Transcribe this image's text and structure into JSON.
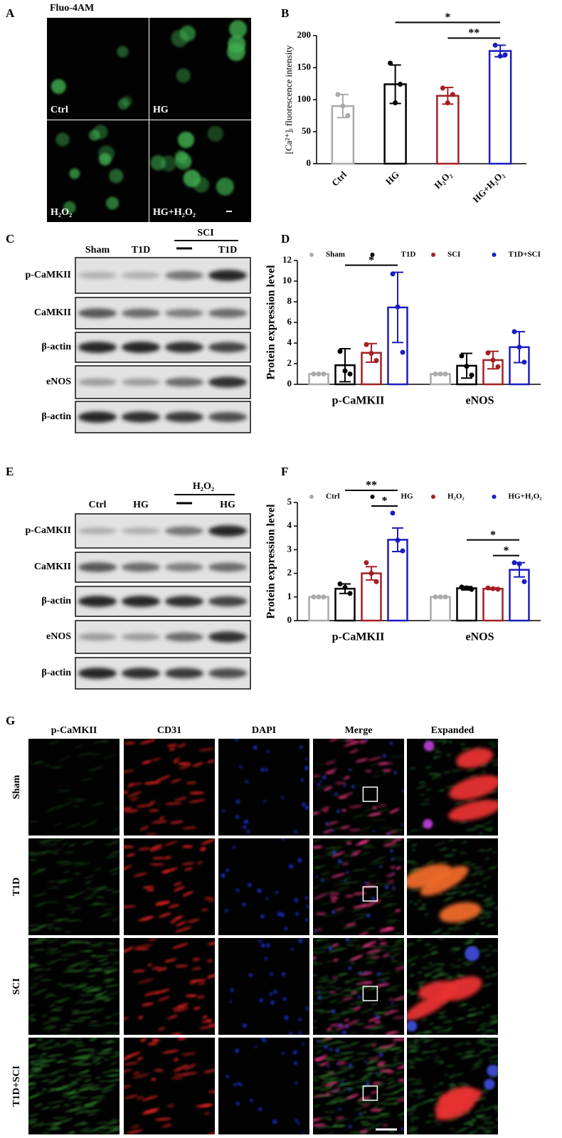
{
  "figure": {
    "panel_labels": {
      "a": "A",
      "b": "B",
      "c": "C",
      "d": "D",
      "e": "E",
      "f": "F",
      "g": "G"
    },
    "panel_a": {
      "stain": "Fluo-4AM",
      "labels": [
        "Ctrl",
        "HG",
        "H₂O₂",
        "HG+H₂O₂"
      ]
    },
    "panel_c": {
      "group": "SCI",
      "lanes": [
        "Sham",
        "T1D",
        "T1D"
      ],
      "proteins": [
        "p-CaMKII",
        "CaMKII",
        "β-actin",
        "eNOS",
        "β-actin"
      ]
    },
    "panel_e": {
      "group": "H₂O₂",
      "lanes": [
        "Ctrl",
        "HG",
        "HG"
      ],
      "proteins": [
        "p-CaMKII",
        "CaMKII",
        "β-actin",
        "eNOS",
        "β-actin"
      ]
    },
    "panel_g": {
      "columns": [
        "p-CaMKII",
        "CD31",
        "DAPI",
        "Merge",
        "Expanded"
      ],
      "rows": [
        "Sham",
        "T1D",
        "SCI",
        "T1D+SCI"
      ]
    }
  },
  "chart_data": [
    {
      "type": "bar",
      "y_label": "[Ca²⁺]ᵢ fluorescence intensity",
      "categories": [
        "Ctrl",
        "HG",
        "H₂O₂",
        "HG+H₂O₂"
      ],
      "values": [
        90,
        124,
        106,
        176
      ],
      "errors": [
        18,
        30,
        13,
        9
      ],
      "points": [
        [
          108,
          90,
          75
        ],
        [
          157,
          95,
          124
        ],
        [
          118,
          95,
          108
        ],
        [
          185,
          168,
          170
        ]
      ],
      "colors": [
        "#aaaaaa",
        "#000000",
        "#a31f24",
        "#1c1cc0"
      ],
      "ylim": [
        0,
        200
      ],
      "yticks": [
        0,
        50,
        100,
        150,
        200
      ],
      "annotations": [
        {
          "label": "*",
          "from": 1,
          "to": 3
        },
        {
          "label": "**",
          "from": 2,
          "to": 3
        }
      ]
    },
    {
      "type": "bar",
      "y_label": "Protein expression level",
      "categories": [
        "p-CaMKII",
        "eNOS"
      ],
      "legend": "top",
      "series": [
        {
          "name": "Sham",
          "color": "#aaaaaa",
          "values": [
            1,
            1
          ],
          "errors": [
            0,
            0
          ],
          "points": [
            [
              1,
              1,
              1
            ],
            [
              1,
              1,
              1
            ]
          ]
        },
        {
          "name": "T1D",
          "color": "#000000",
          "values": [
            1.85,
            1.8
          ],
          "errors": [
            1.6,
            1.2
          ],
          "points": [
            [
              3.2,
              1.3,
              1.0
            ],
            [
              2.75,
              1.75,
              0.9
            ]
          ]
        },
        {
          "name": "SCI",
          "color": "#a31f24",
          "values": [
            3.05,
            2.35
          ],
          "errors": [
            0.9,
            0.85
          ],
          "points": [
            [
              3.85,
              3.0,
              2.3
            ],
            [
              3.05,
              2.35,
              1.7
            ]
          ]
        },
        {
          "name": "T1D+SCI",
          "color": "#1c1cc0",
          "values": [
            7.45,
            3.6
          ],
          "errors": [
            3.4,
            1.5
          ],
          "points": [
            [
              10.7,
              7.5,
              3.1
            ],
            [
              5.1,
              3.6,
              2.15
            ]
          ]
        }
      ],
      "ylim": [
        0,
        12
      ],
      "yticks": [
        0,
        2,
        4,
        6,
        8,
        10,
        12
      ],
      "annotations": [
        {
          "label": "*",
          "group": 0,
          "from": 1,
          "to": 3
        }
      ]
    },
    {
      "type": "bar",
      "y_label": "Protein expression level",
      "categories": [
        "p-CaMKII",
        "eNOS"
      ],
      "legend": "top",
      "series": [
        {
          "name": "Ctrl",
          "color": "#aaaaaa",
          "values": [
            1,
            1
          ],
          "errors": [
            0,
            0
          ],
          "points": [
            [
              1,
              1,
              1
            ],
            [
              1,
              1,
              1
            ]
          ]
        },
        {
          "name": "HG",
          "color": "#000000",
          "values": [
            1.35,
            1.37
          ],
          "errors": [
            0.2,
            0.07
          ],
          "points": [
            [
              1.55,
              1.4,
              1.15
            ],
            [
              1.42,
              1.38,
              1.32
            ]
          ]
        },
        {
          "name": "H₂O₂",
          "color": "#a31f24",
          "values": [
            2.0,
            1.35
          ],
          "errors": [
            0.28,
            0.03
          ],
          "points": [
            [
              2.45,
              2.0,
              1.65
            ],
            [
              1.38,
              1.35,
              1.33
            ]
          ]
        },
        {
          "name": "HG+H₂O₂",
          "color": "#1c1cc0",
          "values": [
            3.42,
            2.15
          ],
          "errors": [
            0.5,
            0.3
          ],
          "points": [
            [
              4.55,
              3.4,
              2.95
            ],
            [
              2.45,
              2.4,
              1.65
            ]
          ]
        }
      ],
      "ylim": [
        0,
        5
      ],
      "yticks": [
        0,
        1,
        2,
        3,
        4,
        5
      ],
      "annotations": [
        {
          "label": "**",
          "group": 0,
          "from": 1,
          "to": 3
        },
        {
          "label": "*",
          "group": 0,
          "from": 2,
          "to": 3
        },
        {
          "label": "*",
          "group": 1,
          "from": 1,
          "to": 3
        },
        {
          "label": "*",
          "group": 1,
          "from": 2,
          "to": 3
        }
      ]
    }
  ]
}
